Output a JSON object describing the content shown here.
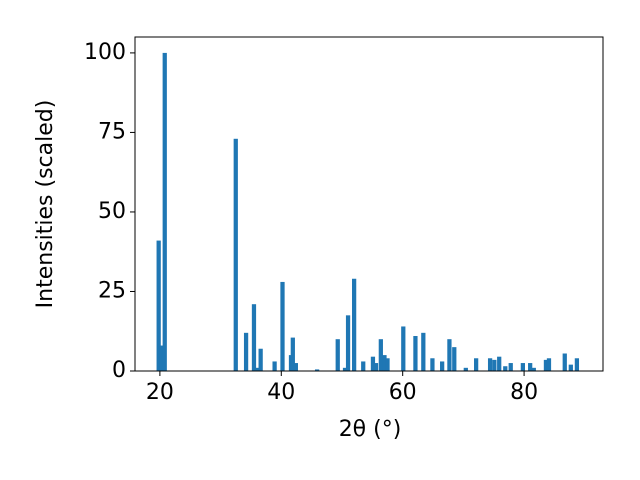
{
  "chart_data": {
    "type": "bar",
    "x_label": "2θ (°)",
    "y_label": "Intensities (scaled)",
    "color": "#1f77b4",
    "x": [
      19.8,
      20.3,
      20.8,
      32.5,
      34.2,
      35.5,
      36.0,
      36.6,
      38.9,
      40.2,
      41.6,
      41.9,
      42.4,
      45.9,
      49.3,
      50.5,
      51.0,
      52.0,
      53.5,
      55.1,
      55.6,
      56.4,
      57.0,
      57.5,
      60.1,
      62.1,
      63.4,
      64.9,
      66.5,
      67.7,
      68.5,
      70.4,
      72.1,
      74.4,
      75.1,
      75.9,
      76.9,
      77.8,
      79.8,
      81.0,
      81.6,
      83.6,
      84.1,
      86.7,
      87.7,
      88.7
    ],
    "values": [
      41,
      8,
      100,
      73,
      12,
      21,
      1,
      7,
      3,
      28,
      5,
      10.5,
      2.5,
      0.5,
      10,
      1,
      17.5,
      29,
      3,
      4.5,
      2.5,
      10,
      5,
      4,
      14,
      11,
      12,
      4,
      3,
      10,
      7.5,
      1,
      4,
      4,
      3.5,
      4.5,
      1.5,
      2.5,
      2.5,
      2.5,
      1,
      3.5,
      4,
      5.5,
      2,
      4
    ],
    "xlim": [
      15.9,
      93.0
    ],
    "ylim": [
      0,
      105
    ],
    "xticks": [
      20,
      40,
      60,
      80
    ],
    "yticks": [
      0,
      25,
      50,
      75,
      100
    ]
  }
}
